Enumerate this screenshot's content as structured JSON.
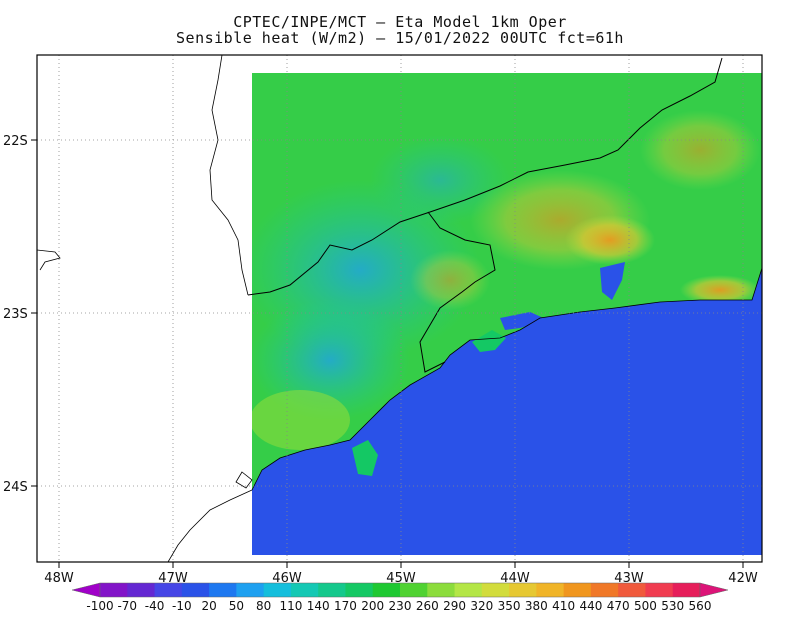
{
  "title": {
    "line1": "CPTEC/INPE/MCT –  Eta Model 1km Oper",
    "line2": "Sensible heat (W/m2) – 15/01/2022 00UTC fct=61h"
  },
  "map": {
    "lon_range": [
      -48.2,
      -41.85
    ],
    "lat_range": [
      -24.45,
      -21.6
    ],
    "ocean_color": "#2a52e8",
    "grid_lines": "dotted",
    "lat_labels": [
      {
        "value": -22,
        "text": "22S"
      },
      {
        "value": -23,
        "text": "23S"
      },
      {
        "value": -24,
        "text": "24S"
      }
    ],
    "lon_labels": [
      {
        "value": -48,
        "text": "48W"
      },
      {
        "value": -47,
        "text": "47W"
      },
      {
        "value": -46,
        "text": "46W"
      },
      {
        "value": -45,
        "text": "45W"
      },
      {
        "value": -44,
        "text": "44W"
      },
      {
        "value": -43,
        "text": "43W"
      },
      {
        "value": -42,
        "text": "42W"
      }
    ]
  },
  "colorbar": {
    "labels": [
      "-100",
      "-70",
      "-40",
      "-10",
      "20",
      "50",
      "80",
      "110",
      "140",
      "170",
      "200",
      "230",
      "260",
      "290",
      "320",
      "350",
      "380",
      "410",
      "440",
      "470",
      "500",
      "530",
      "560"
    ],
    "colors": [
      "#a000c8",
      "#8214c8",
      "#6428d2",
      "#4646e6",
      "#2a52e8",
      "#1e78f0",
      "#1ea0f0",
      "#14bedc",
      "#14c8b4",
      "#14c88c",
      "#14c864",
      "#1ec832",
      "#50d232",
      "#8cdc3c",
      "#b4e646",
      "#d2dc3c",
      "#e6c832",
      "#f0b428",
      "#f0961e",
      "#f07828",
      "#f05a3c",
      "#f03c50",
      "#e61e5a",
      "#dc1478"
    ]
  }
}
